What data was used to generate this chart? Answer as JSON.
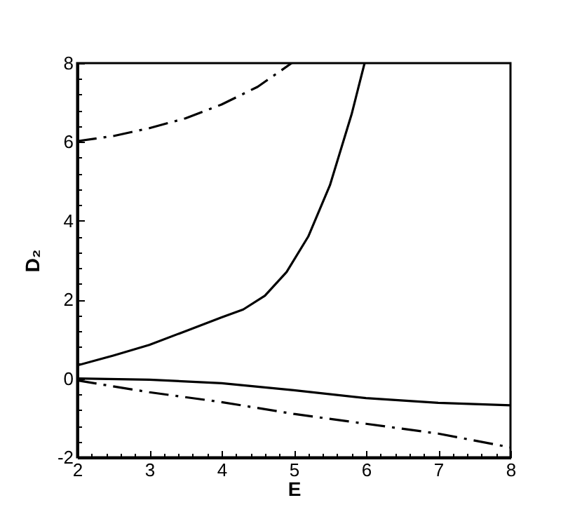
{
  "chart_data": {
    "type": "line",
    "xlabel": "E",
    "ylabel": "D₂",
    "xlim": [
      2,
      8
    ],
    "ylim": [
      -2,
      8
    ],
    "xticks": [
      2,
      {
        "value": 2.2,
        "label": null
      },
      {
        "value": 2.4,
        "label": null
      },
      {
        "value": 2.6,
        "label": null
      },
      {
        "value": 2.8,
        "label": null
      },
      3,
      {
        "value": 3.2,
        "label": null
      },
      {
        "value": 3.4,
        "label": null
      },
      {
        "value": 3.6,
        "label": null
      },
      {
        "value": 3.8,
        "label": null
      },
      4,
      {
        "value": 4.2,
        "label": null
      },
      {
        "value": 4.4,
        "label": null
      },
      {
        "value": 4.6,
        "label": null
      },
      {
        "value": 4.8,
        "label": null
      },
      5,
      {
        "value": 5.2,
        "label": null
      },
      {
        "value": 5.4,
        "label": null
      },
      {
        "value": 5.6,
        "label": null
      },
      {
        "value": 5.8,
        "label": null
      },
      6,
      {
        "value": 6.2,
        "label": null
      },
      {
        "value": 6.4,
        "label": null
      },
      {
        "value": 6.6,
        "label": null
      },
      {
        "value": 6.8,
        "label": null
      },
      7,
      {
        "value": 7.2,
        "label": null
      },
      {
        "value": 7.4,
        "label": null
      },
      {
        "value": 7.6,
        "label": null
      },
      {
        "value": 7.8,
        "label": null
      },
      8
    ],
    "yticks": [
      -2,
      {
        "value": -1.6,
        "label": null
      },
      {
        "value": -1.2,
        "label": null
      },
      {
        "value": -0.8,
        "label": null
      },
      {
        "value": -0.4,
        "label": null
      },
      0,
      {
        "value": 0.4,
        "label": null
      },
      {
        "value": 0.8,
        "label": null
      },
      {
        "value": 1.2,
        "label": null
      },
      {
        "value": 1.6,
        "label": null
      },
      2,
      {
        "value": 2.4,
        "label": null
      },
      {
        "value": 2.8,
        "label": null
      },
      {
        "value": 3.2,
        "label": null
      },
      {
        "value": 3.6,
        "label": null
      },
      4,
      {
        "value": 4.4,
        "label": null
      },
      {
        "value": 4.8,
        "label": null
      },
      {
        "value": 5.2,
        "label": null
      },
      {
        "value": 5.6,
        "label": null
      },
      6,
      {
        "value": 6.4,
        "label": null
      },
      {
        "value": 6.8,
        "label": null
      },
      {
        "value": 7.2,
        "label": null
      },
      {
        "value": 7.6,
        "label": null
      },
      8
    ],
    "grid": false,
    "series": [
      {
        "color": "#000000",
        "line_style": "dashed",
        "x": [
          2,
          2.5,
          3,
          3.5,
          4,
          4.5,
          4.97
        ],
        "values": [
          6.02,
          6.15,
          6.35,
          6.6,
          6.95,
          7.4,
          8
        ]
      },
      {
        "color": "#000000",
        "line_style": "solid",
        "x": [
          2,
          2.5,
          3,
          3.5,
          4,
          4.3,
          4.6,
          4.9,
          5.2,
          5.5,
          5.8,
          5.98
        ],
        "values": [
          0.33,
          0.58,
          0.85,
          1.2,
          1.55,
          1.75,
          2.1,
          2.7,
          3.6,
          4.9,
          6.7,
          8
        ]
      },
      {
        "color": "#000000",
        "line_style": "solid",
        "x": [
          2,
          3,
          4,
          5,
          6,
          7,
          8
        ],
        "values": [
          0,
          -0.03,
          -0.12,
          -0.3,
          -0.5,
          -0.62,
          -0.68
        ]
      },
      {
        "color": "#000000",
        "line_style": "dashed",
        "x": [
          2,
          3,
          4,
          5,
          6,
          7,
          8
        ],
        "values": [
          -0.05,
          -0.35,
          -0.6,
          -0.9,
          -1.15,
          -1.4,
          -1.75
        ]
      }
    ]
  }
}
